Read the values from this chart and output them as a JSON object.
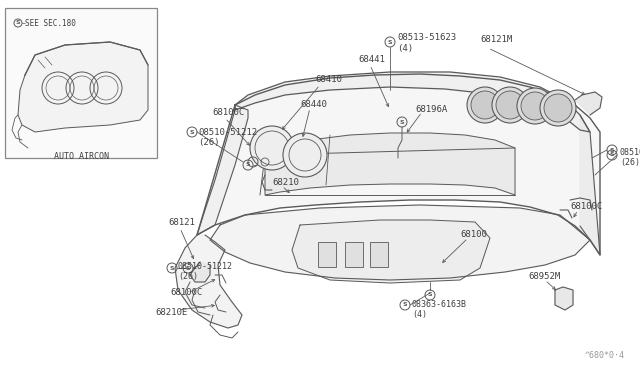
{
  "bg_color": "#ffffff",
  "line_color": "#5a5a5a",
  "text_color": "#404040",
  "fig_width": 6.4,
  "fig_height": 3.72,
  "dpi": 100,
  "watermark": "^680*0·4",
  "inset_label": "AUTO AIRCON",
  "inset_see": "SEE SEC.180"
}
